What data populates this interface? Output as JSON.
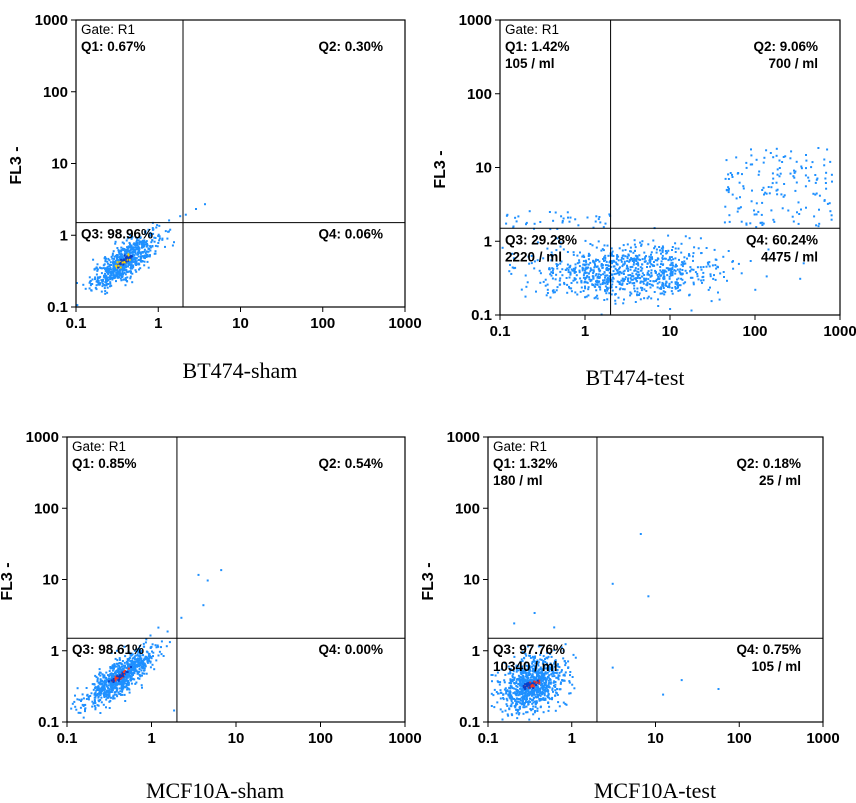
{
  "chart_data": [
    {
      "type": "scatter",
      "caption": "BT474-sham",
      "ylabel": "FL3 -",
      "xlabel": "",
      "xscale": "log",
      "yscale": "log",
      "xlim": [
        0.1,
        1000
      ],
      "ylim": [
        0.1,
        1000
      ],
      "x_ticks": [
        "0.1",
        "1",
        "10",
        "100",
        "1000"
      ],
      "y_ticks": [
        "0.1",
        "1",
        "10",
        "100",
        "1000"
      ],
      "gate": "Gate: R1",
      "quadrant_x": 2.0,
      "quadrant_y": 1.5,
      "quadrants": {
        "Q1": [
          "Q1: 0.67%"
        ],
        "Q2": [
          "Q2: 0.30%"
        ],
        "Q3": [
          "Q3: 98.96%"
        ],
        "Q4": [
          "Q4: 0.06%"
        ]
      },
      "cluster": {
        "x_center": 0.38,
        "y_center": 0.45,
        "count": 700
      },
      "extra_points": [
        [
          2.1,
          2.0
        ],
        [
          2.8,
          2.4
        ],
        [
          3.6,
          2.8
        ],
        [
          1.8,
          1.9
        ]
      ],
      "color": "#1e90ff",
      "hot_color": "#ffd400"
    },
    {
      "type": "scatter",
      "caption": "BT474-test",
      "ylabel": "FL3 -",
      "xlabel": "",
      "xscale": "log",
      "yscale": "log",
      "xlim": [
        0.1,
        1000
      ],
      "ylim": [
        0.1,
        1000
      ],
      "x_ticks": [
        "0.1",
        "1",
        "10",
        "100",
        "1000"
      ],
      "y_ticks": [
        "0.1",
        "1",
        "10",
        "100",
        "1000"
      ],
      "gate": "Gate: R1",
      "quadrant_x": 2.0,
      "quadrant_y": 1.5,
      "quadrants": {
        "Q1": [
          "Q1: 1.42%",
          "105 / ml"
        ],
        "Q2": [
          "Q2: 9.06%",
          "700 / ml"
        ],
        "Q3": [
          "Q3: 29.28%",
          "2220 / ml"
        ],
        "Q4": [
          "Q4: 60.24%",
          "4475 / ml"
        ]
      },
      "cluster": {
        "x_center": 3.0,
        "y_center": 0.4,
        "count": 900
      },
      "extra_points": [],
      "color": "#1e90ff",
      "hot_color": "#ffd400"
    },
    {
      "type": "scatter",
      "caption": "MCF10A-sham",
      "ylabel": "FL3 -",
      "xlabel": "",
      "xscale": "log",
      "yscale": "log",
      "xlim": [
        0.1,
        1000
      ],
      "ylim": [
        0.1,
        1000
      ],
      "x_ticks": [
        "0.1",
        "1",
        "10",
        "100",
        "1000"
      ],
      "y_ticks": [
        "0.1",
        "1",
        "10",
        "100",
        "1000"
      ],
      "gate": "Gate: R1",
      "quadrant_x": 2.0,
      "quadrant_y": 1.5,
      "quadrants": {
        "Q1": [
          "Q1: 0.85%"
        ],
        "Q2": [
          "Q2: 0.54%"
        ],
        "Q3": [
          "Q3: 98.61%"
        ],
        "Q4": [
          "Q4: 0.00%"
        ]
      },
      "cluster": {
        "x_center": 0.42,
        "y_center": 0.45,
        "count": 800
      },
      "extra_points": [
        [
          3.5,
          12
        ],
        [
          4.5,
          10
        ],
        [
          6.5,
          14
        ],
        [
          4.0,
          4.5
        ],
        [
          2.2,
          3.0
        ],
        [
          1.8,
          0.15
        ]
      ],
      "color": "#1e90ff",
      "hot_color": "#ff3b1f"
    },
    {
      "type": "scatter",
      "caption": "MCF10A-test",
      "ylabel": "FL3 -",
      "xlabel": "",
      "xscale": "log",
      "yscale": "log",
      "xlim": [
        0.1,
        1000
      ],
      "ylim": [
        0.1,
        1000
      ],
      "x_ticks": [
        "0.1",
        "1",
        "10",
        "100",
        "1000"
      ],
      "y_ticks": [
        "0.1",
        "1",
        "10",
        "100",
        "1000"
      ],
      "gate": "Gate: R1",
      "quadrant_x": 2.0,
      "quadrant_y": 1.5,
      "quadrants": {
        "Q1": [
          "Q1: 1.32%",
          "180 / ml"
        ],
        "Q2": [
          "Q2: 0.18%",
          "25 / ml"
        ],
        "Q3": [
          "Q3: 97.76%",
          "10340 / ml"
        ],
        "Q4": [
          "Q4: 0.75%",
          "105 / ml"
        ]
      },
      "cluster": {
        "x_center": 0.32,
        "y_center": 0.35,
        "count": 900
      },
      "extra_points": [
        [
          6.5,
          45
        ],
        [
          3.0,
          9
        ],
        [
          8.0,
          6
        ],
        [
          0.35,
          3.5
        ],
        [
          0.2,
          2.5
        ],
        [
          0.6,
          2.2
        ],
        [
          3.0,
          0.6
        ],
        [
          20,
          0.4
        ],
        [
          55,
          0.3
        ],
        [
          12,
          0.25
        ]
      ],
      "color": "#1e90ff",
      "hot_color": "#ff3b1f"
    }
  ]
}
